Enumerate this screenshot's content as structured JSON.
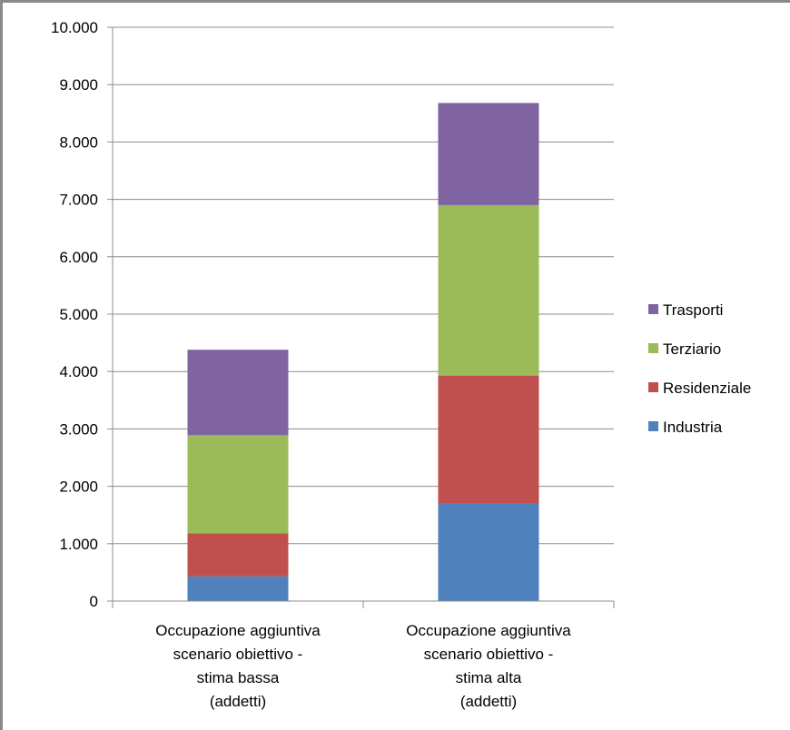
{
  "chart_data": {
    "type": "bar",
    "stacked": true,
    "categories": [
      [
        "Occupazione aggiuntiva",
        "scenario obiettivo -",
        "stima bassa",
        "(addetti)"
      ],
      [
        "Occupazione aggiuntiva",
        "scenario obiettivo  -",
        "stima alta",
        "(addetti)"
      ]
    ],
    "series": [
      {
        "name": "Industria",
        "color": "#4f81bd",
        "values": [
          430,
          1700
        ]
      },
      {
        "name": "Residenziale",
        "color": "#c0504d",
        "values": [
          750,
          2230
        ]
      },
      {
        "name": "Terziario",
        "color": "#9bbb59",
        "values": [
          1710,
          2970
        ]
      },
      {
        "name": "Trasporti",
        "color": "#8064a2",
        "values": [
          1490,
          1780
        ]
      }
    ],
    "ylim": [
      0,
      10000
    ],
    "yticks": [
      "0",
      "1.000",
      "2.000",
      "3.000",
      "4.000",
      "5.000",
      "6.000",
      "7.000",
      "8.000",
      "9.000",
      "10.000"
    ],
    "grid": true,
    "legend_position": "right"
  }
}
